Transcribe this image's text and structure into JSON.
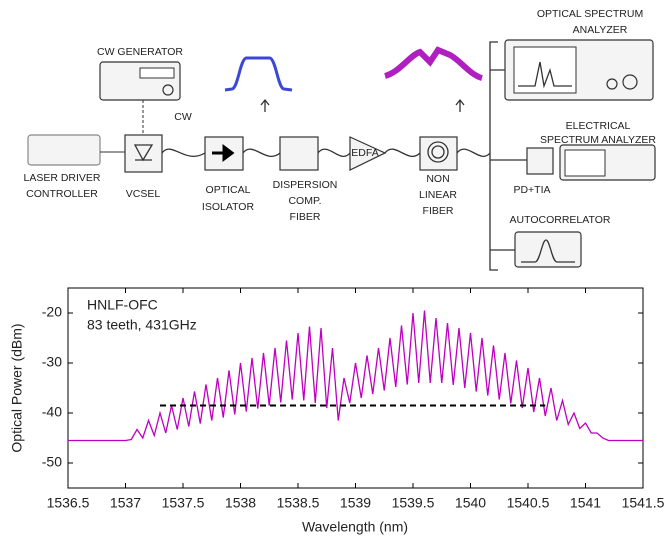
{
  "diagram": {
    "osa": [
      "OPTICAL SPECTRUM",
      "ANALYZER"
    ],
    "cw_generator": "CW GENERATOR",
    "cw": "CW",
    "laser_driver": [
      "LASER DRIVER",
      "CONTROLLER"
    ],
    "vcsel": "VCSEL",
    "isolator": [
      "OPTICAL",
      "ISOLATOR"
    ],
    "dcf": [
      "DISPERSION",
      "COMP.",
      "FIBER"
    ],
    "edfa": "EDFA",
    "hnlf": [
      "NON",
      "LINEAR",
      "FIBER"
    ],
    "esa": [
      "ELECTRICAL",
      "SPECTRUM ANALYZER"
    ],
    "pd_tia": "PD+TIA",
    "autocorrelator": "AUTOCORRELATOR"
  },
  "chart_data": {
    "type": "line",
    "xlabel": "Wavelength (nm)",
    "ylabel": "Optical Power (dBm)",
    "annotations": [
      "HNLF-OFC",
      "83 teeth, 431GHz"
    ],
    "color": "#c000c0",
    "x": [
      1536.5,
      1536.55,
      1536.6,
      1536.65,
      1536.7,
      1536.75,
      1536.8,
      1536.85,
      1536.9,
      1536.95,
      1537,
      1537.05,
      1537.1,
      1537.15,
      1537.2,
      1537.25,
      1537.3,
      1537.35,
      1537.4,
      1537.45,
      1537.5,
      1537.55,
      1537.6,
      1537.65,
      1537.7,
      1537.75,
      1537.8,
      1537.85,
      1537.9,
      1537.95,
      1538,
      1538.05,
      1538.1,
      1538.15,
      1538.2,
      1538.25,
      1538.3,
      1538.35,
      1538.4,
      1538.45,
      1538.5,
      1538.55,
      1538.6,
      1538.65,
      1538.7,
      1538.75,
      1538.8,
      1538.85,
      1538.9,
      1538.95,
      1539,
      1539.05,
      1539.1,
      1539.15,
      1539.2,
      1539.25,
      1539.3,
      1539.35,
      1539.4,
      1539.45,
      1539.5,
      1539.55,
      1539.6,
      1539.65,
      1539.7,
      1539.75,
      1539.8,
      1539.85,
      1539.9,
      1539.95,
      1540,
      1540.05,
      1540.1,
      1540.15,
      1540.2,
      1540.25,
      1540.3,
      1540.35,
      1540.4,
      1540.45,
      1540.5,
      1540.55,
      1540.6,
      1540.65,
      1540.7,
      1540.75,
      1540.8,
      1540.85,
      1540.9,
      1540.95,
      1541,
      1541.05,
      1541.1,
      1541.15,
      1541.2,
      1541.25,
      1541.3,
      1541.35,
      1541.4,
      1541.45,
      1541.5
    ],
    "values": [
      -45.5,
      -45.5,
      -45.5,
      -45.5,
      -45.5,
      -45.5,
      -45.5,
      -45.5,
      -45.5,
      -45.5,
      -45.5,
      -45.3,
      -43.3,
      -45,
      -41.5,
      -44.5,
      -40,
      -44,
      -38.5,
      -43.3,
      -37,
      -42.7,
      -35.7,
      -42.1,
      -34.3,
      -41.5,
      -33,
      -40.9,
      -31.5,
      -40.3,
      -30,
      -39.7,
      -29,
      -39.1,
      -28,
      -38.5,
      -27,
      -37.9,
      -25.5,
      -37.3,
      -24,
      -37.5,
      -22.7,
      -38,
      -23,
      -39,
      -27,
      -41.5,
      -33,
      -38,
      -30,
      -37,
      -28.5,
      -36.2,
      -27,
      -35.5,
      -25,
      -34.8,
      -22.5,
      -34.3,
      -20,
      -34,
      -19.5,
      -34,
      -21,
      -34,
      -22,
      -34.4,
      -23,
      -35,
      -24,
      -35.7,
      -25,
      -36.5,
      -26.5,
      -37.3,
      -28,
      -38.1,
      -29.5,
      -39,
      -31,
      -39.8,
      -33,
      -40.6,
      -35,
      -41.5,
      -37.5,
      -42.3,
      -40,
      -43.1,
      -42,
      -44,
      -44,
      -45,
      -45.5,
      -45.5,
      -45.5,
      -45.5,
      -45.5,
      -45.5,
      -45.5
    ],
    "reference_line": {
      "x": [
        1537.3,
        1540.65
      ],
      "y": -38.5,
      "color": "#000000"
    },
    "xlim": [
      1536.5,
      1541.5
    ],
    "xticks": [
      1536.5,
      1537,
      1537.5,
      1538,
      1538.5,
      1539,
      1539.5,
      1540,
      1540.5,
      1541,
      1541.5
    ],
    "ylim": [
      -55,
      -15
    ],
    "yticks": [
      -50,
      -40,
      -30,
      -20
    ],
    "grid": false
  }
}
